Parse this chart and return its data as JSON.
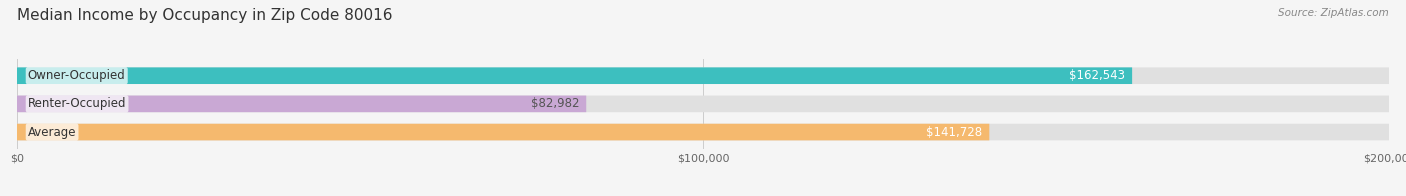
{
  "title": "Median Income by Occupancy in Zip Code 80016",
  "source": "Source: ZipAtlas.com",
  "categories": [
    "Owner-Occupied",
    "Renter-Occupied",
    "Average"
  ],
  "values": [
    162543,
    82982,
    141728
  ],
  "bar_colors": [
    "#3dbfbf",
    "#c9a8d4",
    "#f5b96e"
  ],
  "value_label_colors": [
    "#ffffff",
    "#555555",
    "#ffffff"
  ],
  "value_labels": [
    "$162,543",
    "$82,982",
    "$141,728"
  ],
  "xlim": [
    0,
    200000
  ],
  "xtick_labels": [
    "$0",
    "$100,000",
    "$200,000"
  ],
  "bar_height": 0.58,
  "background_color": "#f5f5f5",
  "bar_bg_color": "#e0e0e0",
  "title_fontsize": 11,
  "label_fontsize": 8.5,
  "value_fontsize": 8.5,
  "source_fontsize": 7.5
}
